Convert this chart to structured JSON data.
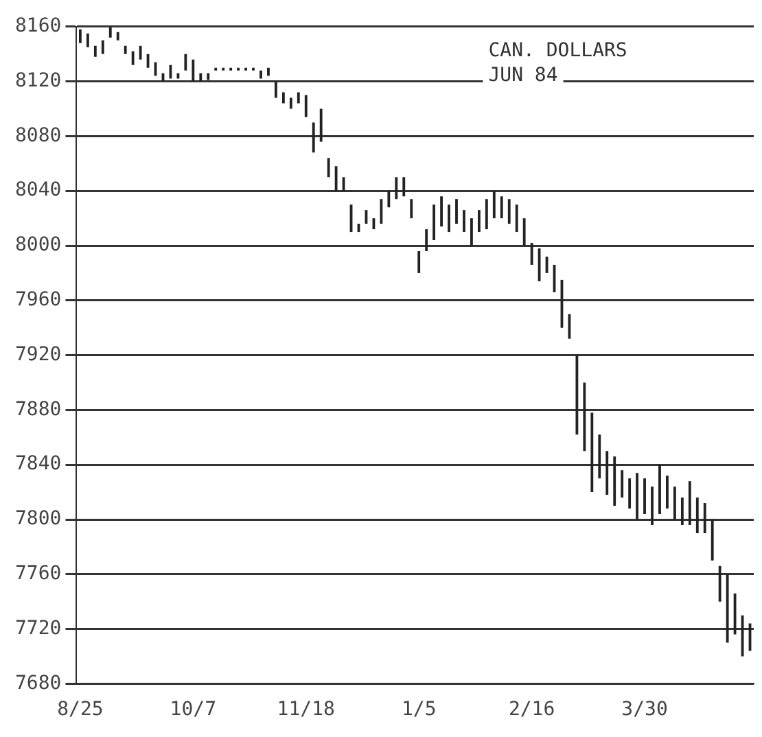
{
  "chart_data": {
    "type": "bar",
    "annotations": [
      "CAN. DOLLARS",
      "JUN 84"
    ],
    "categories": [
      "8/25",
      null,
      null,
      null,
      null,
      null,
      null,
      null,
      null,
      null,
      null,
      null,
      null,
      null,
      null,
      "10/7",
      null,
      null,
      null,
      null,
      null,
      null,
      null,
      null,
      null,
      null,
      null,
      null,
      null,
      null,
      "11/18",
      null,
      null,
      null,
      null,
      null,
      null,
      null,
      null,
      null,
      null,
      null,
      null,
      null,
      null,
      "1/5",
      null,
      null,
      null,
      null,
      null,
      null,
      null,
      null,
      null,
      null,
      null,
      null,
      null,
      null,
      "2/16",
      null,
      null,
      null,
      null,
      null,
      null,
      null,
      null,
      null,
      null,
      null,
      null,
      null,
      null,
      "3/30",
      null,
      null,
      null,
      null,
      null,
      null,
      null,
      null,
      null,
      null,
      null,
      null,
      null,
      null
    ],
    "base": [
      8148,
      8145,
      8138,
      8140,
      8152,
      8150,
      8140,
      8132,
      8136,
      8130,
      8124,
      8120,
      8122,
      8122,
      8128,
      8120,
      8120,
      8121,
      8128,
      8128,
      8128,
      8128,
      8128,
      8128,
      8122,
      8124,
      8108,
      8104,
      8100,
      8104,
      8094,
      8068,
      8076,
      8050,
      8040,
      8040,
      8010,
      8010,
      8016,
      8012,
      8016,
      8028,
      8034,
      8036,
      8020,
      7980,
      7996,
      8004,
      8014,
      8010,
      8016,
      8010,
      8000,
      8010,
      8012,
      8020,
      8020,
      8016,
      8010,
      8000,
      7986,
      7974,
      7980,
      7966,
      7940,
      7932,
      7862,
      7850,
      7820,
      7830,
      7818,
      7810,
      7816,
      7808,
      7800,
      7804,
      7796,
      7804,
      7808,
      7800,
      7796,
      7796,
      7790,
      7790,
      7770,
      7740,
      7710,
      7716,
      7700,
      7704
    ],
    "values": [
      10,
      10,
      8,
      10,
      8,
      6,
      6,
      10,
      10,
      10,
      10,
      6,
      10,
      4,
      12,
      16,
      6,
      5,
      2,
      2,
      2,
      2,
      2,
      2,
      6,
      6,
      12,
      8,
      8,
      8,
      16,
      22,
      24,
      14,
      18,
      10,
      20,
      6,
      10,
      8,
      18,
      12,
      16,
      14,
      14,
      16,
      16,
      26,
      22,
      20,
      18,
      16,
      20,
      16,
      22,
      20,
      16,
      18,
      20,
      20,
      16,
      24,
      12,
      20,
      35,
      18,
      58,
      50,
      58,
      32,
      32,
      36,
      20,
      22,
      34,
      26,
      28,
      36,
      24,
      24,
      20,
      32,
      26,
      22,
      30,
      26,
      50,
      30,
      30,
      20
    ],
    "color": "#222222",
    "ylim": [
      7680,
      8160
    ],
    "yticks": [
      7680,
      7720,
      7760,
      7800,
      7840,
      7880,
      7920,
      7960,
      8000,
      8040,
      8080,
      8120,
      8160
    ],
    "grid": "y",
    "legend": false
  }
}
